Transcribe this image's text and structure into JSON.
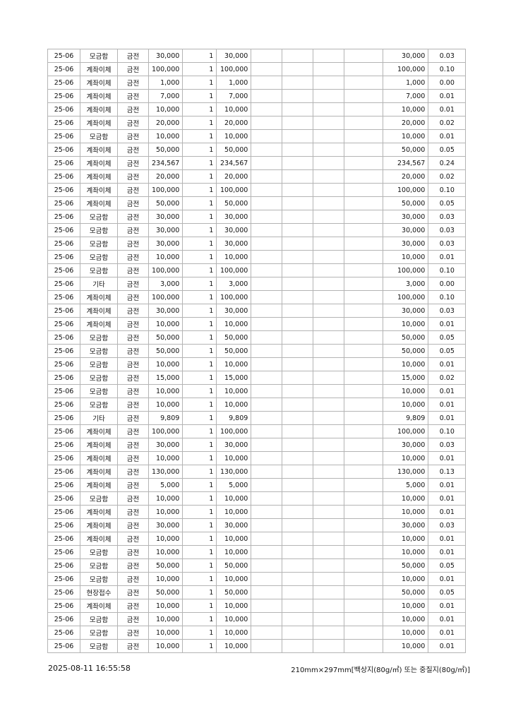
{
  "table": {
    "rows": [
      {
        "period": "25-06",
        "method": "모금함",
        "type": "금전",
        "amount": "30,000",
        "qty": "1",
        "total": "30,000",
        "sum": "30,000",
        "ratio": "0.03"
      },
      {
        "period": "25-06",
        "method": "계좌이체",
        "type": "금전",
        "amount": "100,000",
        "qty": "1",
        "total": "100,000",
        "sum": "100,000",
        "ratio": "0.10"
      },
      {
        "period": "25-06",
        "method": "계좌이체",
        "type": "금전",
        "amount": "1,000",
        "qty": "1",
        "total": "1,000",
        "sum": "1,000",
        "ratio": "0.00"
      },
      {
        "period": "25-06",
        "method": "계좌이체",
        "type": "금전",
        "amount": "7,000",
        "qty": "1",
        "total": "7,000",
        "sum": "7,000",
        "ratio": "0.01"
      },
      {
        "period": "25-06",
        "method": "계좌이체",
        "type": "금전",
        "amount": "10,000",
        "qty": "1",
        "total": "10,000",
        "sum": "10,000",
        "ratio": "0.01"
      },
      {
        "period": "25-06",
        "method": "계좌이체",
        "type": "금전",
        "amount": "20,000",
        "qty": "1",
        "total": "20,000",
        "sum": "20,000",
        "ratio": "0.02"
      },
      {
        "period": "25-06",
        "method": "모금함",
        "type": "금전",
        "amount": "10,000",
        "qty": "1",
        "total": "10,000",
        "sum": "10,000",
        "ratio": "0.01"
      },
      {
        "period": "25-06",
        "method": "계좌이체",
        "type": "금전",
        "amount": "50,000",
        "qty": "1",
        "total": "50,000",
        "sum": "50,000",
        "ratio": "0.05"
      },
      {
        "period": "25-06",
        "method": "계좌이체",
        "type": "금전",
        "amount": "234,567",
        "qty": "1",
        "total": "234,567",
        "sum": "234,567",
        "ratio": "0.24"
      },
      {
        "period": "25-06",
        "method": "계좌이체",
        "type": "금전",
        "amount": "20,000",
        "qty": "1",
        "total": "20,000",
        "sum": "20,000",
        "ratio": "0.02"
      },
      {
        "period": "25-06",
        "method": "계좌이체",
        "type": "금전",
        "amount": "100,000",
        "qty": "1",
        "total": "100,000",
        "sum": "100,000",
        "ratio": "0.10"
      },
      {
        "period": "25-06",
        "method": "계좌이체",
        "type": "금전",
        "amount": "50,000",
        "qty": "1",
        "total": "50,000",
        "sum": "50,000",
        "ratio": "0.05"
      },
      {
        "period": "25-06",
        "method": "모금함",
        "type": "금전",
        "amount": "30,000",
        "qty": "1",
        "total": "30,000",
        "sum": "30,000",
        "ratio": "0.03"
      },
      {
        "period": "25-06",
        "method": "모금함",
        "type": "금전",
        "amount": "30,000",
        "qty": "1",
        "total": "30,000",
        "sum": "30,000",
        "ratio": "0.03"
      },
      {
        "period": "25-06",
        "method": "모금함",
        "type": "금전",
        "amount": "30,000",
        "qty": "1",
        "total": "30,000",
        "sum": "30,000",
        "ratio": "0.03"
      },
      {
        "period": "25-06",
        "method": "모금함",
        "type": "금전",
        "amount": "10,000",
        "qty": "1",
        "total": "10,000",
        "sum": "10,000",
        "ratio": "0.01"
      },
      {
        "period": "25-06",
        "method": "모금함",
        "type": "금전",
        "amount": "100,000",
        "qty": "1",
        "total": "100,000",
        "sum": "100,000",
        "ratio": "0.10"
      },
      {
        "period": "25-06",
        "method": "기타",
        "type": "금전",
        "amount": "3,000",
        "qty": "1",
        "total": "3,000",
        "sum": "3,000",
        "ratio": "0.00"
      },
      {
        "period": "25-06",
        "method": "계좌이체",
        "type": "금전",
        "amount": "100,000",
        "qty": "1",
        "total": "100,000",
        "sum": "100,000",
        "ratio": "0.10"
      },
      {
        "period": "25-06",
        "method": "계좌이체",
        "type": "금전",
        "amount": "30,000",
        "qty": "1",
        "total": "30,000",
        "sum": "30,000",
        "ratio": "0.03"
      },
      {
        "period": "25-06",
        "method": "계좌이체",
        "type": "금전",
        "amount": "10,000",
        "qty": "1",
        "total": "10,000",
        "sum": "10,000",
        "ratio": "0.01"
      },
      {
        "period": "25-06",
        "method": "모금함",
        "type": "금전",
        "amount": "50,000",
        "qty": "1",
        "total": "50,000",
        "sum": "50,000",
        "ratio": "0.05"
      },
      {
        "period": "25-06",
        "method": "모금함",
        "type": "금전",
        "amount": "50,000",
        "qty": "1",
        "total": "50,000",
        "sum": "50,000",
        "ratio": "0.05"
      },
      {
        "period": "25-06",
        "method": "모금함",
        "type": "금전",
        "amount": "10,000",
        "qty": "1",
        "total": "10,000",
        "sum": "10,000",
        "ratio": "0.01"
      },
      {
        "period": "25-06",
        "method": "모금함",
        "type": "금전",
        "amount": "15,000",
        "qty": "1",
        "total": "15,000",
        "sum": "15,000",
        "ratio": "0.02"
      },
      {
        "period": "25-06",
        "method": "모금함",
        "type": "금전",
        "amount": "10,000",
        "qty": "1",
        "total": "10,000",
        "sum": "10,000",
        "ratio": "0.01"
      },
      {
        "period": "25-06",
        "method": "모금함",
        "type": "금전",
        "amount": "10,000",
        "qty": "1",
        "total": "10,000",
        "sum": "10,000",
        "ratio": "0.01"
      },
      {
        "period": "25-06",
        "method": "기타",
        "type": "금전",
        "amount": "9,809",
        "qty": "1",
        "total": "9,809",
        "sum": "9,809",
        "ratio": "0.01"
      },
      {
        "period": "25-06",
        "method": "계좌이체",
        "type": "금전",
        "amount": "100,000",
        "qty": "1",
        "total": "100,000",
        "sum": "100,000",
        "ratio": "0.10"
      },
      {
        "period": "25-06",
        "method": "계좌이체",
        "type": "금전",
        "amount": "30,000",
        "qty": "1",
        "total": "30,000",
        "sum": "30,000",
        "ratio": "0.03"
      },
      {
        "period": "25-06",
        "method": "계좌이체",
        "type": "금전",
        "amount": "10,000",
        "qty": "1",
        "total": "10,000",
        "sum": "10,000",
        "ratio": "0.01"
      },
      {
        "period": "25-06",
        "method": "계좌이체",
        "type": "금전",
        "amount": "130,000",
        "qty": "1",
        "total": "130,000",
        "sum": "130,000",
        "ratio": "0.13"
      },
      {
        "period": "25-06",
        "method": "계좌이체",
        "type": "금전",
        "amount": "5,000",
        "qty": "1",
        "total": "5,000",
        "sum": "5,000",
        "ratio": "0.01"
      },
      {
        "period": "25-06",
        "method": "모금함",
        "type": "금전",
        "amount": "10,000",
        "qty": "1",
        "total": "10,000",
        "sum": "10,000",
        "ratio": "0.01"
      },
      {
        "period": "25-06",
        "method": "계좌이체",
        "type": "금전",
        "amount": "10,000",
        "qty": "1",
        "total": "10,000",
        "sum": "10,000",
        "ratio": "0.01"
      },
      {
        "period": "25-06",
        "method": "계좌이체",
        "type": "금전",
        "amount": "30,000",
        "qty": "1",
        "total": "30,000",
        "sum": "30,000",
        "ratio": "0.03"
      },
      {
        "period": "25-06",
        "method": "계좌이체",
        "type": "금전",
        "amount": "10,000",
        "qty": "1",
        "total": "10,000",
        "sum": "10,000",
        "ratio": "0.01"
      },
      {
        "period": "25-06",
        "method": "모금함",
        "type": "금전",
        "amount": "10,000",
        "qty": "1",
        "total": "10,000",
        "sum": "10,000",
        "ratio": "0.01"
      },
      {
        "period": "25-06",
        "method": "모금함",
        "type": "금전",
        "amount": "50,000",
        "qty": "1",
        "total": "50,000",
        "sum": "50,000",
        "ratio": "0.05"
      },
      {
        "period": "25-06",
        "method": "모금함",
        "type": "금전",
        "amount": "10,000",
        "qty": "1",
        "total": "10,000",
        "sum": "10,000",
        "ratio": "0.01"
      },
      {
        "period": "25-06",
        "method": "현장접수",
        "type": "금전",
        "amount": "50,000",
        "qty": "1",
        "total": "50,000",
        "sum": "50,000",
        "ratio": "0.05"
      },
      {
        "period": "25-06",
        "method": "계좌이체",
        "type": "금전",
        "amount": "10,000",
        "qty": "1",
        "total": "10,000",
        "sum": "10,000",
        "ratio": "0.01"
      },
      {
        "period": "25-06",
        "method": "모금함",
        "type": "금전",
        "amount": "10,000",
        "qty": "1",
        "total": "10,000",
        "sum": "10,000",
        "ratio": "0.01"
      },
      {
        "period": "25-06",
        "method": "모금함",
        "type": "금전",
        "amount": "10,000",
        "qty": "1",
        "total": "10,000",
        "sum": "10,000",
        "ratio": "0.01"
      },
      {
        "period": "25-06",
        "method": "모금함",
        "type": "금전",
        "amount": "10,000",
        "qty": "1",
        "total": "10,000",
        "sum": "10,000",
        "ratio": "0.01"
      }
    ]
  },
  "footer": {
    "timestamp": "2025-08-11 16:55:58",
    "paper_spec": "210mm×297mm[백상지(80g/㎡) 또는 중질지(80g/㎡)]"
  }
}
